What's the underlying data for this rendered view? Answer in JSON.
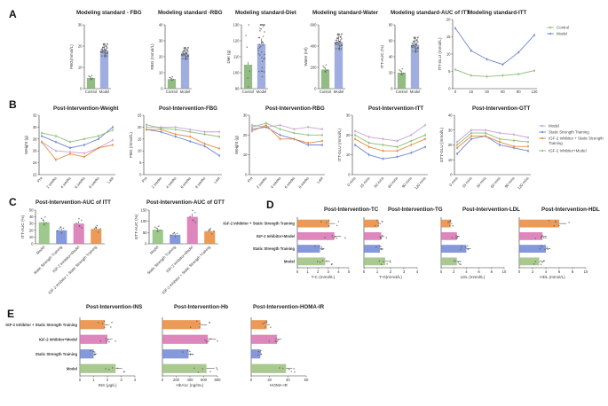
{
  "panels": [
    "A",
    "B",
    "C",
    "D",
    "E"
  ],
  "colors": {
    "control": "#7fb06e",
    "model": "#8ea0d8",
    "static": "#8ea0d8",
    "green": "#8cbf78",
    "purple": "#c8a2d8",
    "orange": "#e88a3a",
    "blue": "#6f86d4",
    "pink": "#d772b0",
    "olive": "#9bbf7c",
    "ink": "#333333"
  },
  "chart_data": [
    {
      "id": "A1",
      "type": "bar",
      "title": "Modeling standard - FBG",
      "ylabel": "FBG(mmol/L)",
      "categories": [
        "Control",
        "Model"
      ],
      "values": [
        5,
        18
      ],
      "ylim": [
        0,
        30
      ],
      "yticks": [
        "0",
        "10",
        "20",
        "30"
      ]
    },
    {
      "id": "A2",
      "type": "bar",
      "title": "Modeling standard -RBG",
      "ylabel": "RBG (mmol/L)",
      "categories": [
        "Control",
        "Model"
      ],
      "values": [
        6,
        22
      ],
      "ylim": [
        0,
        40
      ],
      "yticks": [
        "0",
        "10",
        "20",
        "30",
        "40"
      ]
    },
    {
      "id": "A3",
      "type": "bar",
      "title": "Modeling standard-Diet",
      "ylabel": "Diet (g)",
      "categories": [
        "Control",
        "Model"
      ],
      "values": [
        105,
        118
      ],
      "ylim": [
        90,
        130
      ],
      "yticks": [
        "90",
        "100",
        "110",
        "120",
        "130"
      ]
    },
    {
      "id": "A4",
      "type": "bar",
      "title": "Modeling standard-Water",
      "ylabel": "Water (ml)",
      "categories": [
        "Control",
        "Model"
      ],
      "values": [
        180,
        440
      ],
      "ylim": [
        0,
        600
      ],
      "yticks": [
        "0",
        "200",
        "400",
        "600"
      ]
    },
    {
      "id": "A5",
      "type": "bar",
      "title": "Modeling standard-AUC of ITT",
      "ylabel": "ITT-AUC (%)",
      "categories": [
        "Control",
        "Model"
      ],
      "values": [
        20,
        55
      ],
      "ylim": [
        0,
        80
      ],
      "yticks": [
        "0",
        "20",
        "40",
        "60",
        "80"
      ]
    },
    {
      "id": "A6",
      "type": "line",
      "title": "Modeling standard-ITT",
      "ylabel": "ITT-GLU (mmol/L)",
      "x": [
        "0",
        "15",
        "30",
        "60",
        "90",
        "120"
      ],
      "ylim": [
        0,
        20
      ],
      "yticks": [
        "0",
        "5",
        "10",
        "15",
        "20"
      ],
      "legend": [
        "Control",
        "Model"
      ],
      "series": [
        {
          "name": "Control",
          "values": [
            5.5,
            3.8,
            3.5,
            3.8,
            4.2,
            5.2
          ]
        },
        {
          "name": "Model",
          "values": [
            17.5,
            11,
            8.5,
            7,
            10.5,
            15.5
          ]
        }
      ]
    },
    {
      "id": "B1",
      "type": "line",
      "title": "Post-Intervention-Weight",
      "ylabel": "Weight (g)",
      "x": [
        "Pre",
        "2 weeks",
        "4 weeks",
        "6 weeks",
        "8 weeks",
        "Last"
      ],
      "ylim": [
        22,
        32
      ],
      "yticks": [
        "22",
        "24",
        "26",
        "28",
        "30",
        "32"
      ],
      "series": [
        {
          "name": "Model",
          "values": [
            27.5,
            26,
            25.8,
            25.6,
            26.5,
            27.8
          ]
        },
        {
          "name": "Static Strength Training",
          "values": [
            28.5,
            27.5,
            26.5,
            27,
            28,
            30
          ]
        },
        {
          "name": "IGF-2 Inhibitor + Static Strength Training",
          "values": [
            27.5,
            24.5,
            25.5,
            25,
            26.5,
            27
          ]
        },
        {
          "name": "IGF-2 Inhibitor+Model",
          "values": [
            29,
            28.5,
            27.5,
            28,
            28.5,
            29.5
          ]
        }
      ]
    },
    {
      "id": "B2",
      "type": "line",
      "title": "Post-Intervention-FBG",
      "ylabel": "FBG (mmol/L)",
      "x": [
        "Pre",
        "2 weeks",
        "4 weeks",
        "6 weeks",
        "8 weeks",
        "Last"
      ],
      "ylim": [
        0,
        25
      ],
      "yticks": [
        "0",
        "5",
        "10",
        "15",
        "20",
        "25"
      ],
      "series": [
        {
          "name": "Model",
          "values": [
            20,
            20,
            20,
            19,
            18,
            18
          ]
        },
        {
          "name": "Static Strength Training",
          "values": [
            19,
            18,
            16,
            14,
            12,
            8
          ]
        },
        {
          "name": "IGF-2 Inhibitor + Static Strength Training",
          "values": [
            19,
            19,
            17,
            16,
            13,
            11
          ]
        },
        {
          "name": "IGF-2 Inhibitor+Model",
          "values": [
            21,
            19.5,
            19,
            18,
            17,
            16
          ]
        }
      ]
    },
    {
      "id": "B3",
      "type": "line",
      "title": "Post-Intervention-RBG",
      "ylabel": "Weight (g)",
      "x": [
        "Pre",
        "2 weeks",
        "4 weeks",
        "6 weeks",
        "8 weeks",
        "Last"
      ],
      "ylim": [
        0,
        30
      ],
      "yticks": [
        "0",
        "10",
        "20",
        "30"
      ],
      "series": [
        {
          "name": "Model",
          "values": [
            25,
            24,
            25,
            23,
            24,
            23
          ]
        },
        {
          "name": "Static Strength Training",
          "values": [
            23,
            24,
            20,
            18,
            15,
            15
          ]
        },
        {
          "name": "IGF-2 Inhibitor + Static Strength Training",
          "values": [
            22,
            25,
            18,
            18,
            16,
            17
          ]
        },
        {
          "name": "IGF-2 Inhibitor+Model",
          "values": [
            24,
            26,
            23,
            21,
            20,
            20
          ]
        }
      ]
    },
    {
      "id": "B4",
      "type": "line",
      "title": "Post-Intervention-ITT",
      "ylabel": "ITT-GLU (mmol/L)",
      "x": [
        "0 mins",
        "15 mins",
        "30 mins",
        "60 mins",
        "90 mins",
        "120 mins"
      ],
      "ylim": [
        0,
        30
      ],
      "yticks": [
        "0",
        "10",
        "20",
        "30"
      ],
      "series": [
        {
          "name": "Model",
          "values": [
            22,
            19,
            18,
            17,
            20,
            25
          ]
        },
        {
          "name": "Static Strength Training",
          "values": [
            15,
            10,
            8,
            9,
            11,
            14
          ]
        },
        {
          "name": "IGF-2 Inhibitor + Static Strength Training",
          "values": [
            18,
            14,
            12,
            12,
            15,
            18
          ]
        },
        {
          "name": "IGF-2 Inhibitor+Model",
          "values": [
            20,
            16,
            15,
            14,
            17,
            20
          ]
        }
      ]
    },
    {
      "id": "B5",
      "type": "line",
      "title": "Post-Intervention-GTT",
      "ylabel": "GTT-GLU (mmol/L)",
      "x": [
        "0 mins",
        "15 mins",
        "30 mins",
        "60 mins",
        "90 mins",
        "120 mins"
      ],
      "ylim": [
        0,
        40
      ],
      "yticks": [
        "0",
        "10",
        "20",
        "30",
        "40"
      ],
      "legend": [
        "Model",
        "Static Strength Training",
        "IGF-2 Inhibitor + Static Strength Training",
        "IGF-2 Inhibitor+Model"
      ],
      "series": [
        {
          "name": "Model",
          "values": [
            22,
            30,
            30,
            28,
            27,
            25
          ]
        },
        {
          "name": "Static Strength Training",
          "values": [
            14,
            24,
            26,
            20,
            18,
            16
          ]
        },
        {
          "name": "IGF-2 Inhibitor + Static Strength Training",
          "values": [
            18,
            26,
            26,
            22,
            19,
            19
          ]
        },
        {
          "name": "IGF-2 Inhibitor+Model",
          "values": [
            20,
            28,
            28,
            24,
            23,
            22
          ]
        }
      ]
    },
    {
      "id": "C1",
      "type": "bar",
      "title": "Post-Intervention-AUC of ITT",
      "ylabel": "ITT-AUC (%)",
      "categories": [
        "Model",
        "Static Strength Training",
        "IGF-2 Inhibitor+Model",
        "IGF-2 Inhibitor + Static Strength Training"
      ],
      "values": [
        32,
        20,
        30,
        22
      ],
      "ylim": [
        0,
        50
      ],
      "yticks": [
        "0",
        "10",
        "20",
        "30",
        "40",
        "50"
      ]
    },
    {
      "id": "C2",
      "type": "bar",
      "title": "Post-Intervention-AUC of GTT",
      "ylabel": "GTT-AUC (%)",
      "categories": [
        "Model",
        "Static Strength Training",
        "IGF-2 Inhibitor+Model",
        "IGF-2 Inhibitor + Static Strength Training"
      ],
      "values": [
        63,
        40,
        120,
        56
      ],
      "ylim": [
        0,
        150
      ],
      "yticks": [
        "0",
        "50",
        "100",
        "150"
      ]
    },
    {
      "id": "D1",
      "type": "bar",
      "orientation": "horizontal",
      "title": "Post-Intervention-TC",
      "xlabel": "T-C (mmol/L)",
      "categories": [
        "IGF-2 Inhibitor + Static Strength Training",
        "IGF-2 Inhibitor+Model",
        "Static Strength Training",
        "Model"
      ],
      "values": [
        3.1,
        3.6,
        2.2,
        2.7
      ],
      "xlim": [
        0,
        5
      ],
      "xticks": [
        "0",
        "1",
        "2",
        "3",
        "4",
        "5"
      ]
    },
    {
      "id": "D2",
      "type": "bar",
      "orientation": "horizontal",
      "title": "Post-Intervention-TG",
      "xlabel": "T-G(mmol/L)",
      "categories": [
        "IGF-2 Inhibitor + Static Strength Training",
        "IGF-2 Inhibitor+Model",
        "Static Strength Training",
        "Model"
      ],
      "values": [
        1.1,
        1.3,
        1.2,
        1.6
      ],
      "xlim": [
        0,
        4
      ],
      "xticks": [
        "0",
        "1",
        "2",
        "3",
        "4"
      ]
    },
    {
      "id": "D3",
      "type": "bar",
      "orientation": "horizontal",
      "title": "Post-Intervention-LDL",
      "xlabel": "LDL (mmol/L)",
      "categories": [
        "IGF-2 Inhibitor + Static Strength Training",
        "IGF-2 Inhibitor+Model",
        "Static Strength Training",
        "Model"
      ],
      "values": [
        1.5,
        2.5,
        4,
        2.5
      ],
      "xlim": [
        0,
        10
      ],
      "xticks": [
        "0",
        "2",
        "4",
        "6",
        "8",
        "10"
      ]
    },
    {
      "id": "D4",
      "type": "bar",
      "orientation": "horizontal",
      "title": "Post-Intervention-HDL",
      "xlabel": "HDL (mmol/L)",
      "categories": [
        "IGF-2 Inhibitor + Static Strength Training",
        "IGF-2 Inhibitor+Model",
        "Static Strength Training",
        "Model"
      ],
      "values": [
        6,
        3.5,
        4,
        3
      ],
      "xlim": [
        0,
        10
      ],
      "xticks": [
        "0",
        "2",
        "4",
        "6",
        "8",
        "10"
      ]
    },
    {
      "id": "E1",
      "type": "bar",
      "orientation": "horizontal",
      "title": "Post-Intervention-INS",
      "xlabel": "INS (μg/L)",
      "categories": [
        "IGF-2 Inhibitor + Static Strength Training",
        "IGF-2 Inhibitor+Model",
        "Static Strength Training",
        "Model"
      ],
      "values": [
        1.8,
        2,
        1,
        2.6
      ],
      "xlim": [
        0,
        4
      ],
      "xticks": [
        "0",
        "1",
        "2",
        "3",
        "4"
      ]
    },
    {
      "id": "E2",
      "type": "bar",
      "orientation": "horizontal",
      "title": "Post-Intervention-Hb",
      "xlabel": "HbA1c (ng/mL)",
      "categories": [
        "IGF-2 Inhibitor + Static Strength Training",
        "IGF-2 Inhibitor+Model",
        "Static Strength Training",
        "Model"
      ],
      "values": [
        550,
        660,
        380,
        640
      ],
      "xlim": [
        0,
        800
      ],
      "xticks": [
        "0",
        "200",
        "400",
        "600",
        "800"
      ]
    },
    {
      "id": "E3",
      "type": "bar",
      "orientation": "horizontal",
      "title": "Post-Intervention-HOMA-IR",
      "xlabel": "HOMA-IR",
      "categories": [
        "IGF-2 Inhibitor + Static Strength Training",
        "IGF-2 Inhibitor+Model",
        "Static Strength Training",
        "Model"
      ],
      "values": [
        17,
        28,
        10,
        38
      ],
      "xlim": [
        0,
        60
      ],
      "xticks": [
        "0",
        "20",
        "40",
        "60"
      ]
    }
  ]
}
